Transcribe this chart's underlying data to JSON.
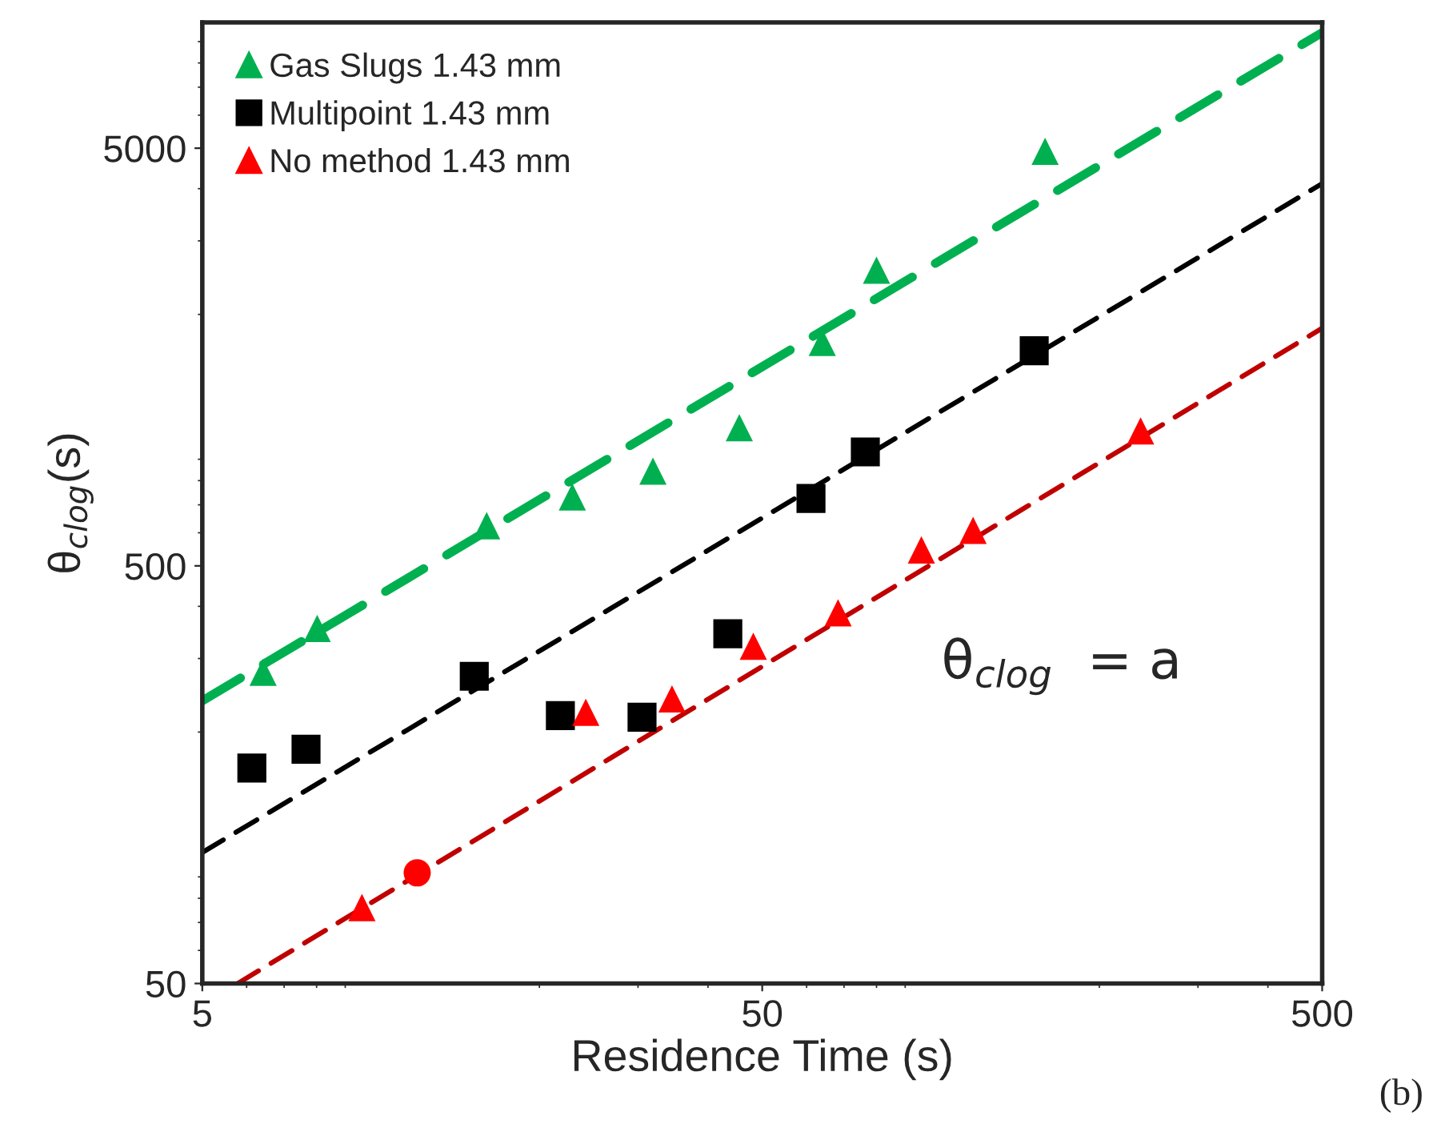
{
  "chart_data": {
    "type": "scatter",
    "xlabel": "Residence Time (s)",
    "ylabel": "θ$_{clog}$(s)",
    "log": "xy",
    "xlim": [
      5,
      500
    ],
    "ylim": [
      50,
      10000
    ],
    "xticks": [
      5,
      50,
      500
    ],
    "yticks": [
      50,
      500,
      5000
    ],
    "grid": false,
    "legend": "top left",
    "series": [
      {
        "name": "Gas Slugs 1.43 mm",
        "marker": "triangle",
        "color": "#00b050",
        "x": [
          6.42,
          8.02,
          16.1,
          22.9,
          31.9,
          45.5,
          64,
          80,
          160
        ],
        "values": [
          278,
          354,
          624,
          731,
          843,
          1071,
          1713,
          2551,
          4914
        ]
      },
      {
        "name": "Multipoint 1.43 mm",
        "marker": "square",
        "color": "#000000",
        "x": [
          6.13,
          7.66,
          15.3,
          21.8,
          30.5,
          43.4,
          61.1,
          76.4,
          153
        ],
        "values": [
          164,
          182,
          272,
          219,
          217,
          344,
          725,
          937,
          1637
        ]
      },
      {
        "name": "No method 1.43 mm",
        "marker": "triangle",
        "color": "#ff0000",
        "x": [
          9.64,
          24.2,
          34.5,
          48.2,
          68.3,
          96.2,
          119,
          237
        ],
        "values": [
          76,
          223,
          240,
          321,
          386,
          546,
          608,
          1052
        ]
      },
      {
        "marker": "circle",
        "color": "#ff0000",
        "x": [
          12.1
        ],
        "values": [
          92
        ]
      },
      {
        "type": "line",
        "line_style": "dashed",
        "color": "#00b050",
        "x": [
          5,
          500
        ],
        "values": [
          237.6,
          9460
        ]
      },
      {
        "type": "line",
        "line_style": "dashed",
        "color": "#000000",
        "x": [
          5,
          500
        ],
        "values": [
          103,
          4115
        ]
      },
      {
        "type": "line",
        "line_style": "dashed",
        "color": "#c00000",
        "x": [
          5.78,
          500
        ],
        "values": [
          50,
          1854
        ]
      }
    ],
    "annotations": [
      "θ$_{clog}$  = a",
      "(b)"
    ]
  }
}
